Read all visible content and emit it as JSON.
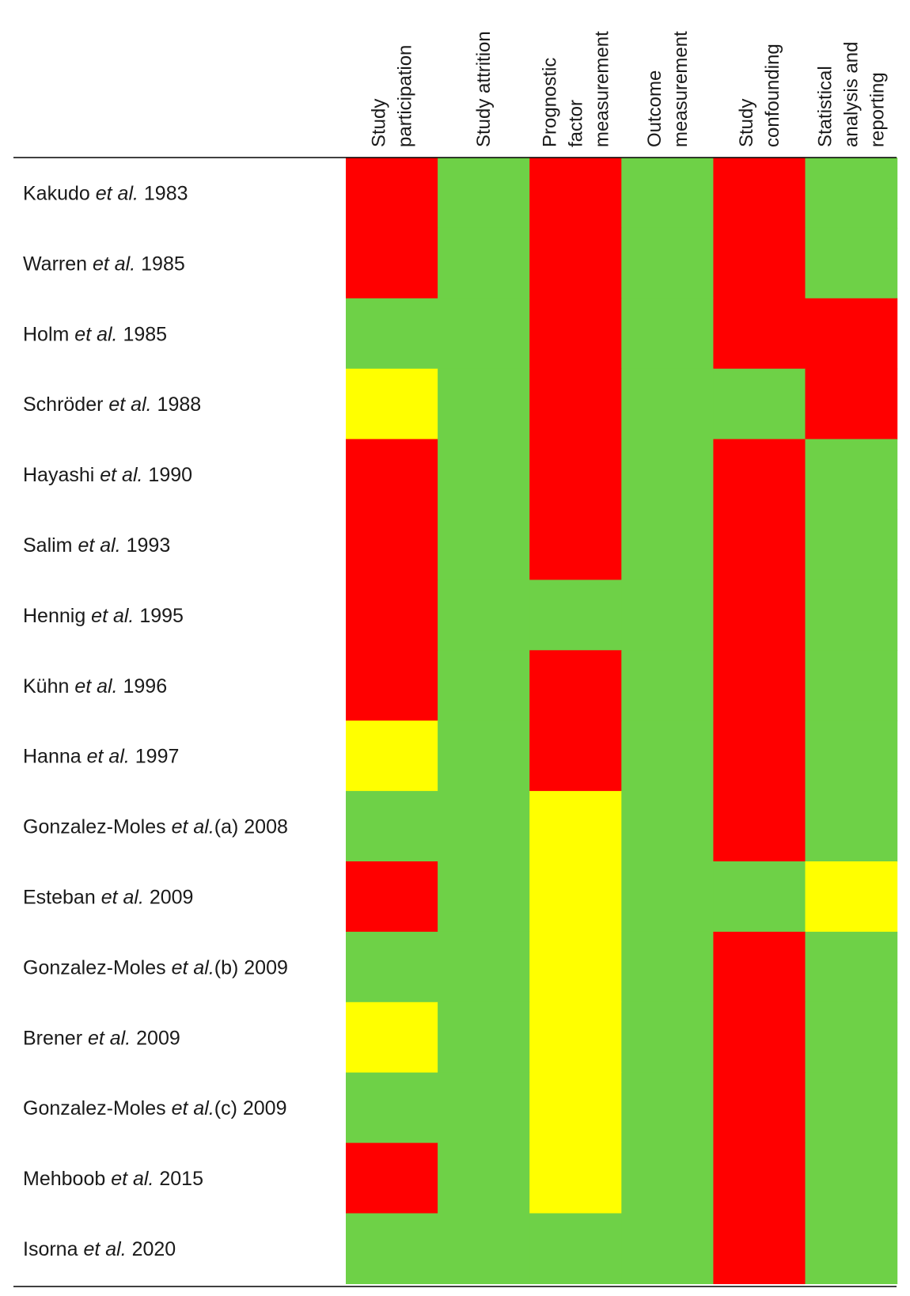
{
  "chart_data": {
    "type": "heatmap",
    "columns": [
      [
        "Study",
        "participation"
      ],
      [
        "Study attrition"
      ],
      [
        "Prognostic",
        "factor",
        "measurement"
      ],
      [
        "Outcome",
        "measurement"
      ],
      [
        "Study",
        "confounding"
      ],
      [
        "Statistical",
        "analysis and",
        "reporting"
      ]
    ],
    "rows": [
      {
        "author": "Kakudo",
        "etal": "et al.",
        "tail": " 1983"
      },
      {
        "author": "Warren",
        "etal": "et al.",
        "tail": " 1985"
      },
      {
        "author": "Holm",
        "etal": "et al.",
        "tail": " 1985"
      },
      {
        "author": "Schröder",
        "etal": "et al.",
        "tail": " 1988"
      },
      {
        "author": "Hayashi",
        "etal": "et al.",
        "tail": " 1990"
      },
      {
        "author": "Salim",
        "etal": "et al.",
        "tail": " 1993"
      },
      {
        "author": "Hennig",
        "etal": "et al.",
        "tail": " 1995"
      },
      {
        "author": "Kühn",
        "etal": "et al.",
        "tail": " 1996"
      },
      {
        "author": "Hanna",
        "etal": "et al.",
        "tail": " 1997"
      },
      {
        "author": "Gonzalez-Moles",
        "etal": "et al.",
        "tail": "(a) 2008"
      },
      {
        "author": "Esteban",
        "etal": "et al.",
        "tail": " 2009"
      },
      {
        "author": "Gonzalez-Moles",
        "etal": "et al.",
        "tail": "(b) 2009"
      },
      {
        "author": "Brener",
        "etal": "et al.",
        "tail": " 2009"
      },
      {
        "author": "Gonzalez-Moles",
        "etal": "et al.",
        "tail": "(c) 2009"
      },
      {
        "author": "Mehboob",
        "etal": "et al.",
        "tail": " 2015"
      },
      {
        "author": "Isorna",
        "etal": "et al.",
        "tail": " 2020"
      }
    ],
    "ratings": [
      [
        "high",
        "low",
        "high",
        "low",
        "high",
        "low"
      ],
      [
        "high",
        "low",
        "high",
        "low",
        "high",
        "low"
      ],
      [
        "low",
        "low",
        "high",
        "low",
        "high",
        "high"
      ],
      [
        "moderate",
        "low",
        "high",
        "low",
        "low",
        "high"
      ],
      [
        "high",
        "low",
        "high",
        "low",
        "high",
        "low"
      ],
      [
        "high",
        "low",
        "high",
        "low",
        "high",
        "low"
      ],
      [
        "high",
        "low",
        "low",
        "low",
        "high",
        "low"
      ],
      [
        "high",
        "low",
        "high",
        "low",
        "high",
        "low"
      ],
      [
        "moderate",
        "low",
        "high",
        "low",
        "high",
        "low"
      ],
      [
        "low",
        "low",
        "moderate",
        "low",
        "high",
        "low"
      ],
      [
        "high",
        "low",
        "moderate",
        "low",
        "low",
        "moderate"
      ],
      [
        "low",
        "low",
        "moderate",
        "low",
        "high",
        "low"
      ],
      [
        "moderate",
        "low",
        "moderate",
        "low",
        "high",
        "low"
      ],
      [
        "low",
        "low",
        "moderate",
        "low",
        "high",
        "low"
      ],
      [
        "high",
        "low",
        "moderate",
        "low",
        "high",
        "low"
      ],
      [
        "low",
        "low",
        "low",
        "low",
        "high",
        "low"
      ]
    ],
    "colors": {
      "high": "#ff0000",
      "moderate": "#ffff00",
      "low": "#6ed147"
    }
  }
}
